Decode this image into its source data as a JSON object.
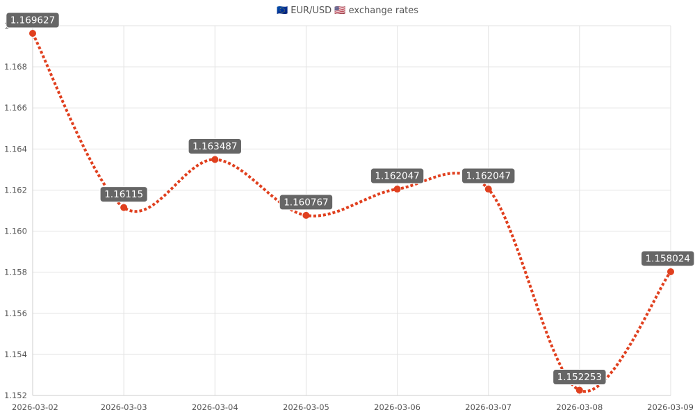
{
  "chart_data": {
    "type": "line",
    "title": "🇪🇺 EUR/USD 🇺🇸 exchange rates",
    "x": [
      "2026-03-02",
      "2026-03-03",
      "2026-03-04",
      "2026-03-05",
      "2026-03-06",
      "2026-03-07",
      "2026-03-08",
      "2026-03-09"
    ],
    "y_ticks": [
      "1.152",
      "1.154",
      "1.156",
      "1.158",
      "1.160",
      "1.162",
      "1.164",
      "1.166",
      "1.168",
      "1"
    ],
    "series": [
      {
        "values": [
          1.169627,
          1.16115,
          1.163487,
          1.160767,
          1.162047,
          1.162047,
          1.152253,
          1.158024
        ],
        "labels": [
          "1.169627",
          "1.16115",
          "1.163487",
          "1.160767",
          "1.162047",
          "1.162047",
          "1.152253",
          "1.158024"
        ]
      }
    ],
    "ylim": [
      1.152,
      1.17
    ],
    "grid": true,
    "line_style": "dotted",
    "line_color": "#e0401f",
    "point_color": "#e0401f",
    "label_bg": "#666666",
    "label_color": "#ffffff"
  }
}
